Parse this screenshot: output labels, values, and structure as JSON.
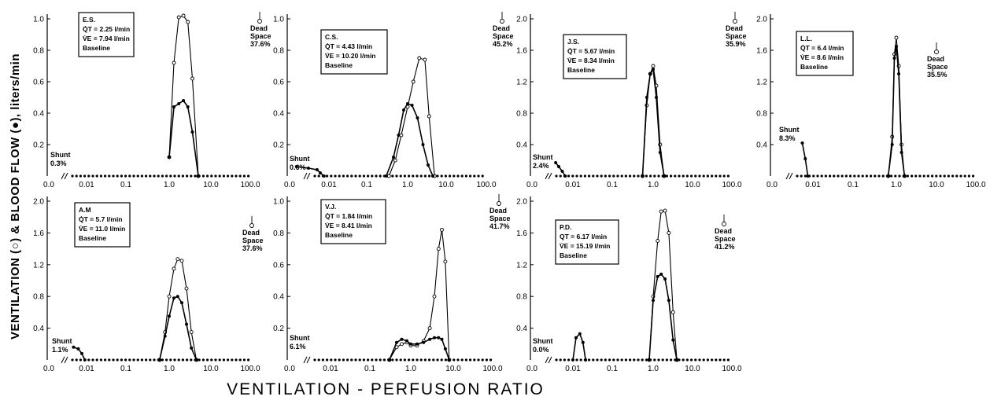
{
  "figure": {
    "y_axis_title": "VENTILATION (○) & BLOOD FLOW (●), liters/min",
    "x_axis_title": "VENTILATION - PERFUSION RATIO",
    "x_tick_labels": [
      "0.0",
      "0.01",
      "0.1",
      "1.0",
      "10.0",
      "100.0"
    ]
  },
  "chart_data": [
    {
      "type": "line",
      "subject": "E.S.",
      "box_lines": [
        "E.S.",
        "Q̇T = 2.25 l/min",
        "V̇E = 7.94 l/min",
        "Baseline"
      ],
      "shunt_label": "Shunt",
      "shunt_value": "0.3%",
      "dead_space_label": [
        "Dead",
        "Space"
      ],
      "dead_space_value": "37.6%",
      "ylim": [
        0,
        1.0
      ],
      "y_ticks": [
        "0.2",
        "0.4",
        "0.6",
        "0.8",
        "1.0"
      ],
      "x_ticks": [
        "0.0",
        "0.01",
        "0.1",
        "1.0",
        "10.0",
        "100.0"
      ],
      "x_scale": "log",
      "series": [
        {
          "marker": "open",
          "x": [
            1.0,
            1.3,
            1.7,
            2.2,
            2.8,
            3.6,
            5.0
          ],
          "y": [
            0.12,
            0.72,
            1.01,
            1.02,
            0.98,
            0.62,
            0.0
          ]
        },
        {
          "marker": "filled",
          "x": [
            1.0,
            1.3,
            1.7,
            2.2,
            2.8,
            3.6,
            5.0
          ],
          "y": [
            0.12,
            0.44,
            0.46,
            0.48,
            0.44,
            0.28,
            0.0
          ]
        }
      ]
    },
    {
      "type": "line",
      "subject": "C.S.",
      "box_lines": [
        "C.S.",
        "Q̇T = 4.43 l/min",
        "V̇E = 10.20 l/min",
        "Baseline"
      ],
      "shunt_label": "Shunt",
      "shunt_value": "0.6%",
      "dead_space_label": [
        "Dead",
        "Space"
      ],
      "dead_space_value": "45.2%",
      "ylim": [
        0,
        1.0
      ],
      "y_ticks": [
        "0.2",
        "0.4",
        "0.6",
        "0.8",
        "1.0"
      ],
      "x_ticks": [
        "0.0",
        "0.01",
        "0.1",
        "1.0",
        "10.0",
        "100.0"
      ],
      "x_scale": "log",
      "series": [
        {
          "marker": "open",
          "x": [
            0.35,
            0.5,
            0.7,
            1.0,
            1.4,
            2.0,
            2.8,
            3.6,
            5.0
          ],
          "y": [
            0.0,
            0.1,
            0.26,
            0.44,
            0.6,
            0.75,
            0.74,
            0.38,
            0.0
          ]
        },
        {
          "marker": "filled",
          "x": [
            0.3,
            0.45,
            0.6,
            0.8,
            1.0,
            1.3,
            1.8,
            2.5,
            3.4,
            4.5
          ],
          "y": [
            0.0,
            0.12,
            0.26,
            0.42,
            0.46,
            0.45,
            0.37,
            0.2,
            0.07,
            0.0
          ]
        },
        {
          "marker": "filled",
          "x": [
            0.0015,
            0.003,
            0.005,
            0.006,
            0.0075
          ],
          "y": [
            0.06,
            0.05,
            0.04,
            0.02,
            0.0
          ]
        }
      ]
    },
    {
      "type": "line",
      "subject": "J.S.",
      "box_lines": [
        "J.S.",
        "Q̇T = 5.67 l/min",
        "V̇E = 8.34 l/min",
        "Baseline"
      ],
      "shunt_label": "Shunt",
      "shunt_value": "2.4%",
      "dead_space_label": [
        "Dead",
        "Space"
      ],
      "dead_space_value": "35.9%",
      "ylim": [
        0,
        2.0
      ],
      "y_ticks": [
        "0.4",
        "0.8",
        "1.2",
        "1.6",
        "2.0"
      ],
      "x_ticks": [
        "0.0",
        "0.01",
        "0.1",
        "1.0",
        "10.0",
        "100.0"
      ],
      "x_scale": "log",
      "series": [
        {
          "marker": "open",
          "x": [
            0.55,
            0.7,
            0.85,
            1.0,
            1.2,
            1.5,
            1.9
          ],
          "y": [
            0.0,
            0.9,
            1.3,
            1.4,
            1.15,
            0.4,
            0.0
          ]
        },
        {
          "marker": "filled",
          "x": [
            0.55,
            0.7,
            0.85,
            1.0,
            1.2,
            1.5,
            1.9
          ],
          "y": [
            0.0,
            1.0,
            1.3,
            1.36,
            1.0,
            0.3,
            0.0
          ]
        },
        {
          "marker": "filled",
          "x": [
            0.0038,
            0.0045,
            0.0055,
            0.0065
          ],
          "y": [
            0.17,
            0.12,
            0.06,
            0.0
          ]
        }
      ]
    },
    {
      "type": "line",
      "subject": "L.L.",
      "box_lines": [
        "L.L.",
        "Q̇T = 6.4 l/min",
        "V̇E = 8.6 l/min",
        "Baseline"
      ],
      "shunt_label": "Shunt",
      "shunt_value": "8.3%",
      "dead_space_label": [
        "Dead",
        "Space"
      ],
      "dead_space_value": "35.5%",
      "ylim": [
        0,
        2.0
      ],
      "y_ticks": [
        "0.4",
        "0.8",
        "1.2",
        "1.6",
        "2.0"
      ],
      "x_ticks": [
        "0.0",
        "0.01",
        "0.1",
        "1.0",
        "10.0",
        "100.0"
      ],
      "x_scale": "log",
      "series": [
        {
          "marker": "open",
          "x": [
            0.65,
            0.8,
            0.9,
            1.0,
            1.15,
            1.35,
            1.6
          ],
          "y": [
            0.0,
            0.5,
            1.55,
            1.76,
            1.4,
            0.4,
            0.0
          ]
        },
        {
          "marker": "filled",
          "x": [
            0.65,
            0.8,
            0.9,
            1.0,
            1.15,
            1.35,
            1.6
          ],
          "y": [
            0.0,
            0.4,
            1.5,
            1.65,
            1.3,
            0.3,
            0.0
          ]
        },
        {
          "marker": "filled",
          "x": [
            0.0055,
            0.0065,
            0.0075
          ],
          "y": [
            0.42,
            0.22,
            0.0
          ]
        }
      ]
    },
    {
      "type": "line",
      "subject": "A.M",
      "box_lines": [
        "A.M",
        "Q̇T = 5.7 l/min",
        "V̇E = 11.0 l/min",
        "Baseline"
      ],
      "shunt_label": "Shunt",
      "shunt_value": "1.1%",
      "dead_space_label": [
        "Dead",
        "Space"
      ],
      "dead_space_value": "37.6%",
      "ylim": [
        0,
        2.0
      ],
      "y_ticks": [
        "0.4",
        "0.8",
        "1.2",
        "1.6",
        "2.0"
      ],
      "x_ticks": [
        "0.0",
        "0.01",
        "0.1",
        "1.0",
        "10.0",
        "100.0"
      ],
      "x_scale": "log",
      "series": [
        {
          "marker": "open",
          "x": [
            0.6,
            0.8,
            1.0,
            1.3,
            1.6,
            2.0,
            2.6,
            3.4,
            4.5
          ],
          "y": [
            0.0,
            0.35,
            0.8,
            1.15,
            1.27,
            1.25,
            0.9,
            0.35,
            0.0
          ]
        },
        {
          "marker": "filled",
          "x": [
            0.6,
            0.8,
            1.0,
            1.3,
            1.6,
            2.0,
            2.6,
            3.4,
            4.5
          ],
          "y": [
            0.0,
            0.3,
            0.55,
            0.78,
            0.8,
            0.72,
            0.45,
            0.15,
            0.0
          ]
        },
        {
          "marker": "filled",
          "x": [
            0.0045,
            0.006,
            0.0075,
            0.009
          ],
          "y": [
            0.16,
            0.14,
            0.08,
            0.0
          ]
        }
      ]
    },
    {
      "type": "line",
      "subject": "V.J.",
      "box_lines": [
        "V.J.",
        "Q̇T = 1.84 l/min",
        "V̇E = 8.41 l/min",
        "Baseline"
      ],
      "shunt_label": "Shunt",
      "shunt_value": "6.1%",
      "dead_space_label": [
        "Dead",
        "Space"
      ],
      "dead_space_value": "41.7%",
      "ylim": [
        0,
        1.0
      ],
      "y_ticks": [
        "0.2",
        "0.4",
        "0.6",
        "0.8",
        "1.0"
      ],
      "x_ticks": [
        "0.0",
        "0.01",
        "0.1",
        "1.0",
        "10.0",
        "100.0"
      ],
      "x_scale": "log",
      "series": [
        {
          "marker": "open",
          "x": [
            0.3,
            0.45,
            0.6,
            0.8,
            1.0,
            1.4,
            2.0,
            2.8,
            3.6,
            4.5,
            5.4,
            6.5,
            8.0
          ],
          "y": [
            0.0,
            0.08,
            0.1,
            0.11,
            0.09,
            0.09,
            0.12,
            0.2,
            0.4,
            0.7,
            0.82,
            0.62,
            0.0
          ]
        },
        {
          "marker": "filled",
          "x": [
            0.3,
            0.45,
            0.6,
            0.8,
            1.0,
            1.4,
            2.0,
            2.8,
            3.6,
            4.5,
            5.4,
            6.5,
            8.0
          ],
          "y": [
            0.0,
            0.11,
            0.13,
            0.12,
            0.1,
            0.1,
            0.11,
            0.13,
            0.14,
            0.14,
            0.13,
            0.07,
            0.0
          ]
        }
      ]
    },
    {
      "type": "line",
      "subject": "P.D.",
      "box_lines": [
        "P.D.",
        "QT = 6.17 l/min",
        "V̇E = 15.19 l/min",
        "Baseline"
      ],
      "shunt_label": "Shunt",
      "shunt_value": "0.0%",
      "dead_space_label": [
        "Dead",
        "Space"
      ],
      "dead_space_value": "41.2%",
      "ylim": [
        0,
        2.0
      ],
      "y_ticks": [
        "0.4",
        "0.8",
        "1.2",
        "1.6",
        "2.0"
      ],
      "x_ticks": [
        "0.0",
        "0.01",
        "0.1",
        "1.0",
        "10.0",
        "100.0"
      ],
      "x_scale": "log",
      "series": [
        {
          "marker": "open",
          "x": [
            0.8,
            1.0,
            1.3,
            1.6,
            2.0,
            2.5,
            3.2,
            4.0
          ],
          "y": [
            0.0,
            0.8,
            1.5,
            1.87,
            1.88,
            1.6,
            0.6,
            0.0
          ]
        },
        {
          "marker": "filled",
          "x": [
            0.8,
            1.0,
            1.3,
            1.6,
            2.0,
            2.5,
            3.2,
            4.0
          ],
          "y": [
            0.0,
            0.75,
            1.05,
            1.08,
            1.02,
            0.75,
            0.25,
            0.0
          ]
        },
        {
          "marker": "filled",
          "x": [
            0.01,
            0.012,
            0.015,
            0.018,
            0.021
          ],
          "y": [
            0.0,
            0.28,
            0.33,
            0.22,
            0.0
          ]
        }
      ]
    }
  ]
}
